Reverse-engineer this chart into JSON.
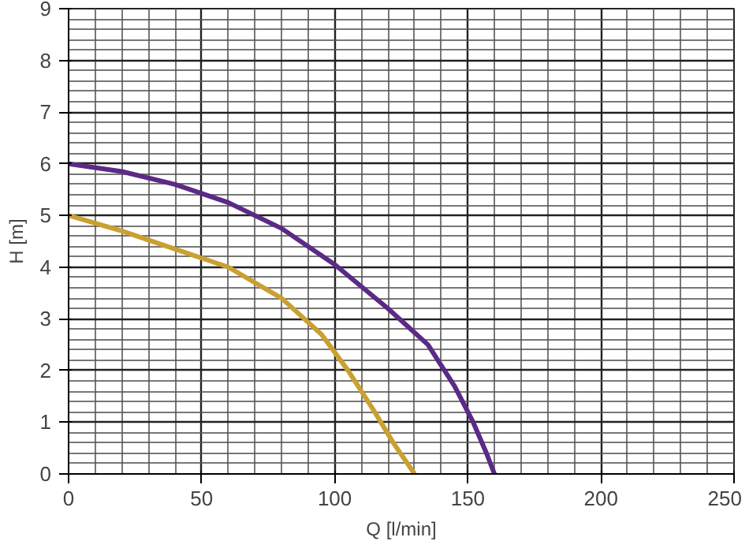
{
  "chart_data": {
    "type": "line",
    "xlabel": "Q [l/min]",
    "ylabel": "H [m]",
    "xlim": [
      0,
      250
    ],
    "ylim": [
      0,
      9
    ],
    "xticks": [
      0,
      50,
      100,
      150,
      200,
      250
    ],
    "yticks": [
      0,
      1,
      2,
      3,
      4,
      5,
      6,
      7,
      8,
      9
    ],
    "grid": true,
    "marker": "none",
    "line_style": "solid",
    "series": [
      {
        "color": "#5b2a86",
        "x": [
          0,
          20,
          40,
          60,
          80,
          100,
          120,
          135,
          145,
          152,
          157,
          160
        ],
        "values": [
          6,
          5.85,
          5.6,
          5.25,
          4.75,
          4.05,
          3.2,
          2.5,
          1.7,
          1.0,
          0.4,
          0
        ]
      },
      {
        "color": "#c9a032",
        "x": [
          0,
          20,
          40,
          60,
          80,
          95,
          105,
          115,
          122,
          130
        ],
        "values": [
          5,
          4.7,
          4.35,
          4.0,
          3.4,
          2.7,
          2.0,
          1.2,
          0.6,
          0
        ]
      }
    ]
  }
}
